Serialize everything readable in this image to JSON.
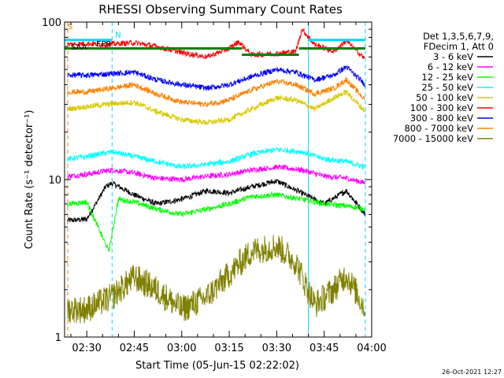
{
  "chart_data": {
    "type": "line",
    "title": "RHESSI Observing Summary Count Rates",
    "xlabel": "Start Time (05-Jun-15 02:22:02)",
    "ylabel": "Count Rate (s⁻¹ detector⁻¹)",
    "y_scale": "log",
    "ylim": [
      1,
      100
    ],
    "xlim_minutes": [
      "02:23",
      "04:00"
    ],
    "x_ticks": [
      "02:30",
      "02:45",
      "03:00",
      "03:15",
      "03:30",
      "03:45",
      "04:00"
    ],
    "y_ticks": [
      "1",
      "10",
      "100"
    ],
    "legend_header": [
      "Det 1,3,5,6,7,9,",
      "FDecim 1, Att 0"
    ],
    "legend_position": "right",
    "timestamp": "26-Oct-2021 12:27",
    "flags": [
      {
        "label": "S",
        "color": "#ff8000",
        "x": "02:23",
        "y": 90
      },
      {
        "label": "N",
        "color": "#00d8ff",
        "x": "02:38",
        "y": 80
      },
      {
        "label": "SAA",
        "color": "#000000",
        "x": "02:24",
        "y": 67
      },
      {
        "label": "EPR",
        "color": "#000000",
        "x": "02:32",
        "y": 70
      }
    ],
    "series": [
      {
        "name": "3 - 6 keV",
        "color": "#000000",
        "values": [
          {
            "t": "02:24",
            "y": 5.5
          },
          {
            "t": "02:30",
            "y": 5.6
          },
          {
            "t": "02:36",
            "y": 9.0
          },
          {
            "t": "02:38",
            "y": 9.5
          },
          {
            "t": "02:45",
            "y": 8.0
          },
          {
            "t": "02:52",
            "y": 7.0
          },
          {
            "t": "03:00",
            "y": 7.5
          },
          {
            "t": "03:08",
            "y": 8.5
          },
          {
            "t": "03:15",
            "y": 8.2
          },
          {
            "t": "03:22",
            "y": 9.0
          },
          {
            "t": "03:30",
            "y": 9.8
          },
          {
            "t": "03:38",
            "y": 8.2
          },
          {
            "t": "03:45",
            "y": 7.0
          },
          {
            "t": "03:52",
            "y": 8.5
          },
          {
            "t": "03:58",
            "y": 6.0
          }
        ]
      },
      {
        "name": "6 - 12 keV",
        "color": "#ff00ff",
        "values": [
          {
            "t": "02:24",
            "y": 10.5
          },
          {
            "t": "02:30",
            "y": 10.8
          },
          {
            "t": "02:38",
            "y": 11.5
          },
          {
            "t": "02:45",
            "y": 11.0
          },
          {
            "t": "02:52",
            "y": 10.2
          },
          {
            "t": "03:00",
            "y": 10.0
          },
          {
            "t": "03:08",
            "y": 10.5
          },
          {
            "t": "03:15",
            "y": 10.8
          },
          {
            "t": "03:22",
            "y": 11.5
          },
          {
            "t": "03:30",
            "y": 12.0
          },
          {
            "t": "03:38",
            "y": 11.5
          },
          {
            "t": "03:45",
            "y": 10.5
          },
          {
            "t": "03:52",
            "y": 10.2
          },
          {
            "t": "03:58",
            "y": 9.5
          }
        ]
      },
      {
        "name": "12 - 25 keV",
        "color": "#00ff00",
        "values": [
          {
            "t": "02:24",
            "y": 7.0
          },
          {
            "t": "02:30",
            "y": 7.2
          },
          {
            "t": "02:37",
            "y": 3.5
          },
          {
            "t": "02:40",
            "y": 7.5
          },
          {
            "t": "02:45",
            "y": 7.2
          },
          {
            "t": "02:52",
            "y": 6.5
          },
          {
            "t": "03:00",
            "y": 6.0
          },
          {
            "t": "03:08",
            "y": 6.5
          },
          {
            "t": "03:15",
            "y": 7.0
          },
          {
            "t": "03:22",
            "y": 7.8
          },
          {
            "t": "03:30",
            "y": 8.0
          },
          {
            "t": "03:38",
            "y": 7.5
          },
          {
            "t": "03:45",
            "y": 7.0
          },
          {
            "t": "03:52",
            "y": 6.8
          },
          {
            "t": "03:58",
            "y": 6.5
          }
        ]
      },
      {
        "name": "25 - 50 keV",
        "color": "#00ffff",
        "values": [
          {
            "t": "02:24",
            "y": 13.5
          },
          {
            "t": "02:30",
            "y": 14.0
          },
          {
            "t": "02:38",
            "y": 15.0
          },
          {
            "t": "02:45",
            "y": 14.0
          },
          {
            "t": "02:52",
            "y": 13.0
          },
          {
            "t": "03:00",
            "y": 12.0
          },
          {
            "t": "03:08",
            "y": 12.5
          },
          {
            "t": "03:15",
            "y": 13.0
          },
          {
            "t": "03:22",
            "y": 14.5
          },
          {
            "t": "03:30",
            "y": 15.5
          },
          {
            "t": "03:38",
            "y": 15.0
          },
          {
            "t": "03:45",
            "y": 13.5
          },
          {
            "t": "03:52",
            "y": 13.0
          },
          {
            "t": "03:58",
            "y": 12.0
          }
        ]
      },
      {
        "name": "50 - 100 keV",
        "color": "#d8c800",
        "values": [
          {
            "t": "02:24",
            "y": 28
          },
          {
            "t": "02:30",
            "y": 29
          },
          {
            "t": "02:36",
            "y": 30
          },
          {
            "t": "02:45",
            "y": 31
          },
          {
            "t": "02:52",
            "y": 27
          },
          {
            "t": "03:00",
            "y": 24
          },
          {
            "t": "03:08",
            "y": 23
          },
          {
            "t": "03:15",
            "y": 24
          },
          {
            "t": "03:22",
            "y": 28
          },
          {
            "t": "03:30",
            "y": 33
          },
          {
            "t": "03:36",
            "y": 32
          },
          {
            "t": "03:42",
            "y": 28
          },
          {
            "t": "03:48",
            "y": 33
          },
          {
            "t": "03:52",
            "y": 36
          },
          {
            "t": "03:58",
            "y": 27
          }
        ]
      },
      {
        "name": "100 - 300 keV",
        "color": "#ff0000",
        "values": [
          {
            "t": "02:24",
            "y": 72
          },
          {
            "t": "02:30",
            "y": 73
          },
          {
            "t": "02:36",
            "y": 72
          },
          {
            "t": "02:45",
            "y": 74
          },
          {
            "t": "02:52",
            "y": 70
          },
          {
            "t": "03:00",
            "y": 64
          },
          {
            "t": "03:08",
            "y": 60
          },
          {
            "t": "03:15",
            "y": 68
          },
          {
            "t": "03:18",
            "y": 75
          },
          {
            "t": "03:22",
            "y": 62
          },
          {
            "t": "03:30",
            "y": 63
          },
          {
            "t": "03:36",
            "y": 65
          },
          {
            "t": "03:38",
            "y": 90
          },
          {
            "t": "03:42",
            "y": 72
          },
          {
            "t": "03:48",
            "y": 65
          },
          {
            "t": "03:52",
            "y": 76
          },
          {
            "t": "03:58",
            "y": 58
          }
        ]
      },
      {
        "name": "300 - 800 keV",
        "color": "#0000ff",
        "values": [
          {
            "t": "02:24",
            "y": 46
          },
          {
            "t": "02:30",
            "y": 46
          },
          {
            "t": "02:38",
            "y": 47
          },
          {
            "t": "02:45",
            "y": 48
          },
          {
            "t": "02:52",
            "y": 43
          },
          {
            "t": "03:00",
            "y": 40
          },
          {
            "t": "03:08",
            "y": 38
          },
          {
            "t": "03:15",
            "y": 40
          },
          {
            "t": "03:22",
            "y": 45
          },
          {
            "t": "03:30",
            "y": 50
          },
          {
            "t": "03:36",
            "y": 48
          },
          {
            "t": "03:42",
            "y": 43
          },
          {
            "t": "03:48",
            "y": 46
          },
          {
            "t": "03:52",
            "y": 52
          },
          {
            "t": "03:58",
            "y": 40
          }
        ]
      },
      {
        "name": "800 - 7000 keV",
        "color": "#ff8000",
        "values": [
          {
            "t": "02:24",
            "y": 36
          },
          {
            "t": "02:30",
            "y": 36
          },
          {
            "t": "02:38",
            "y": 38
          },
          {
            "t": "02:45",
            "y": 40
          },
          {
            "t": "02:52",
            "y": 35
          },
          {
            "t": "03:00",
            "y": 31
          },
          {
            "t": "03:08",
            "y": 30
          },
          {
            "t": "03:15",
            "y": 32
          },
          {
            "t": "03:22",
            "y": 37
          },
          {
            "t": "03:30",
            "y": 42
          },
          {
            "t": "03:36",
            "y": 40
          },
          {
            "t": "03:42",
            "y": 35
          },
          {
            "t": "03:48",
            "y": 38
          },
          {
            "t": "03:52",
            "y": 43
          },
          {
            "t": "03:58",
            "y": 32
          }
        ]
      },
      {
        "name": "7000 - 15000 keV",
        "color": "#808000",
        "values": [
          {
            "t": "02:24",
            "y": 1.5
          },
          {
            "t": "02:30",
            "y": 1.5
          },
          {
            "t": "02:38",
            "y": 1.8
          },
          {
            "t": "02:45",
            "y": 2.4
          },
          {
            "t": "02:52",
            "y": 2.0
          },
          {
            "t": "03:00",
            "y": 1.5
          },
          {
            "t": "03:08",
            "y": 1.8
          },
          {
            "t": "03:15",
            "y": 2.5
          },
          {
            "t": "03:22",
            "y": 3.5
          },
          {
            "t": "03:30",
            "y": 3.8
          },
          {
            "t": "03:36",
            "y": 3.0
          },
          {
            "t": "03:42",
            "y": 1.6
          },
          {
            "t": "03:48",
            "y": 2.0
          },
          {
            "t": "03:52",
            "y": 2.5
          },
          {
            "t": "03:58",
            "y": 1.5
          }
        ]
      }
    ],
    "flag_bars": [
      {
        "color": "#008000",
        "segments": [
          [
            "02:23",
            "03:19",
            68
          ],
          [
            "03:19",
            "03:37",
            62
          ],
          [
            "03:37",
            "03:58",
            68
          ]
        ]
      },
      {
        "color": "#00d8ff",
        "segments": [
          [
            "02:23",
            "02:38",
            77
          ],
          [
            "03:40",
            "03:58",
            77
          ]
        ]
      }
    ],
    "markers": [
      {
        "color": "#ff8000",
        "t": "02:24",
        "style": "dashed"
      },
      {
        "color": "#00d8ff",
        "t": "02:38",
        "style": "dashed"
      },
      {
        "color": "#00d8ff",
        "t": "03:40",
        "style": "solid"
      },
      {
        "color": "#00d8ff",
        "t": "03:58",
        "style": "dashed"
      }
    ]
  }
}
